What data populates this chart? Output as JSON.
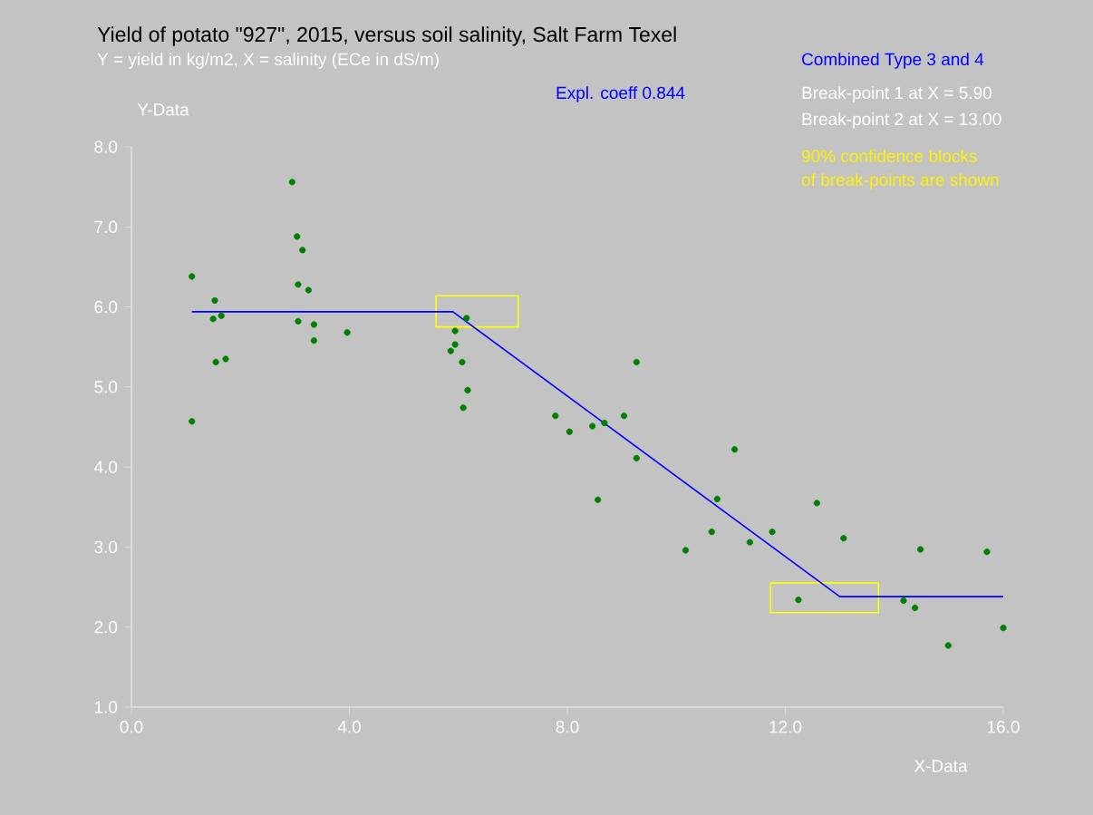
{
  "chart_data": {
    "type": "scatter",
    "title": "Yield of potato \"927\", 2015, versus soil salinity, Salt Farm Texel",
    "subtitle": "Y = yield in kg/m2, X = salinity (ECe in dS/m)",
    "xlabel": "X-Data",
    "ylabel": "Y-Data",
    "annotations": [
      "Combined Type 3 and 4",
      "Expl. coeff    0.844",
      "Break-point 1 at X =  5.90",
      "Break-point 2 at X = 13.00",
      "90% confidence blocks",
      "of break-points are shown"
    ],
    "xlim": [
      0,
      16
    ],
    "ylim": [
      1,
      8
    ],
    "xticks": [
      {
        "value": 0,
        "label": "0.0"
      },
      {
        "value": 4,
        "label": "4.0"
      },
      {
        "value": 8,
        "label": "8.0"
      },
      {
        "value": 12,
        "label": "12.0"
      },
      {
        "value": 16,
        "label": "16.0"
      }
    ],
    "yticks": [
      {
        "value": 1,
        "label": "1.0"
      },
      {
        "value": 2,
        "label": "2.0"
      },
      {
        "value": 3,
        "label": "3.0"
      },
      {
        "value": 4,
        "label": "4.0"
      },
      {
        "value": 5,
        "label": "5.0"
      },
      {
        "value": 6,
        "label": "6.0"
      },
      {
        "value": 7,
        "label": "7.0"
      },
      {
        "value": 8,
        "label": "8.0"
      }
    ],
    "series": [
      {
        "type": "scatter",
        "marker": "circle",
        "color": "#008000",
        "x": [
          1.11,
          1.11,
          1.53,
          1.5,
          1.65,
          1.55,
          1.73,
          2.95,
          3.04,
          3.14,
          3.06,
          3.25,
          3.06,
          3.35,
          3.35,
          3.96,
          5.86,
          5.94,
          5.94,
          6.07,
          6.15,
          6.17,
          6.09,
          7.78,
          8.04,
          8.46,
          8.68,
          8.56,
          9.04,
          9.27,
          9.27,
          10.17,
          10.65,
          10.75,
          11.07,
          11.35,
          11.76,
          12.24,
          12.58,
          13.07,
          14.17,
          14.38,
          14.48,
          14.99,
          15.7,
          16.0
        ],
        "values": [
          6.38,
          4.57,
          6.08,
          5.85,
          5.89,
          5.31,
          5.35,
          7.56,
          6.88,
          6.71,
          6.28,
          6.21,
          5.82,
          5.78,
          5.58,
          5.68,
          5.45,
          5.7,
          5.53,
          5.31,
          5.86,
          4.96,
          4.74,
          4.64,
          4.44,
          4.51,
          4.55,
          3.59,
          4.64,
          5.31,
          4.11,
          2.96,
          3.19,
          3.6,
          4.22,
          3.06,
          3.19,
          2.34,
          3.55,
          3.11,
          2.33,
          2.24,
          2.97,
          1.77,
          2.94,
          1.99
        ]
      },
      {
        "type": "line",
        "marker": "none",
        "color": "#0000ff",
        "x": [
          1.11,
          5.9,
          13.0,
          16.0
        ],
        "values": [
          5.94,
          5.94,
          2.38,
          2.38
        ]
      },
      {
        "type": "line",
        "marker": "none",
        "color": "#ffff00",
        "x": [
          5.59,
          7.1
        ],
        "values": [
          null,
          null
        ],
        "lower": [
          5.75,
          5.75
        ],
        "upper": [
          6.14,
          6.14
        ]
      },
      {
        "type": "line",
        "marker": "none",
        "color": "#ffff00",
        "x": [
          11.73,
          13.71
        ],
        "values": [
          null,
          null
        ],
        "lower": [
          2.18,
          2.18
        ],
        "upper": [
          2.55,
          2.55
        ]
      }
    ]
  }
}
